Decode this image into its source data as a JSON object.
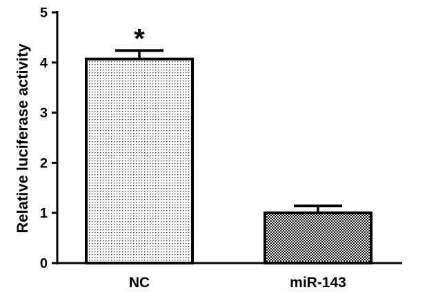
{
  "chart_data": {
    "type": "bar",
    "categories": [
      "NC",
      "miR-143"
    ],
    "values": [
      4.07,
      1.0
    ],
    "errors": [
      0.17,
      0.14
    ],
    "annotations": [
      "*",
      ""
    ],
    "ylabel": "Relative luciferase activity",
    "xlabel": "",
    "ylim": [
      0,
      5
    ],
    "yticks": [
      "0",
      "1",
      "2",
      "3",
      "4",
      "5"
    ],
    "grid": false,
    "patterns": [
      "sparse-dots",
      "checkerboard"
    ]
  }
}
